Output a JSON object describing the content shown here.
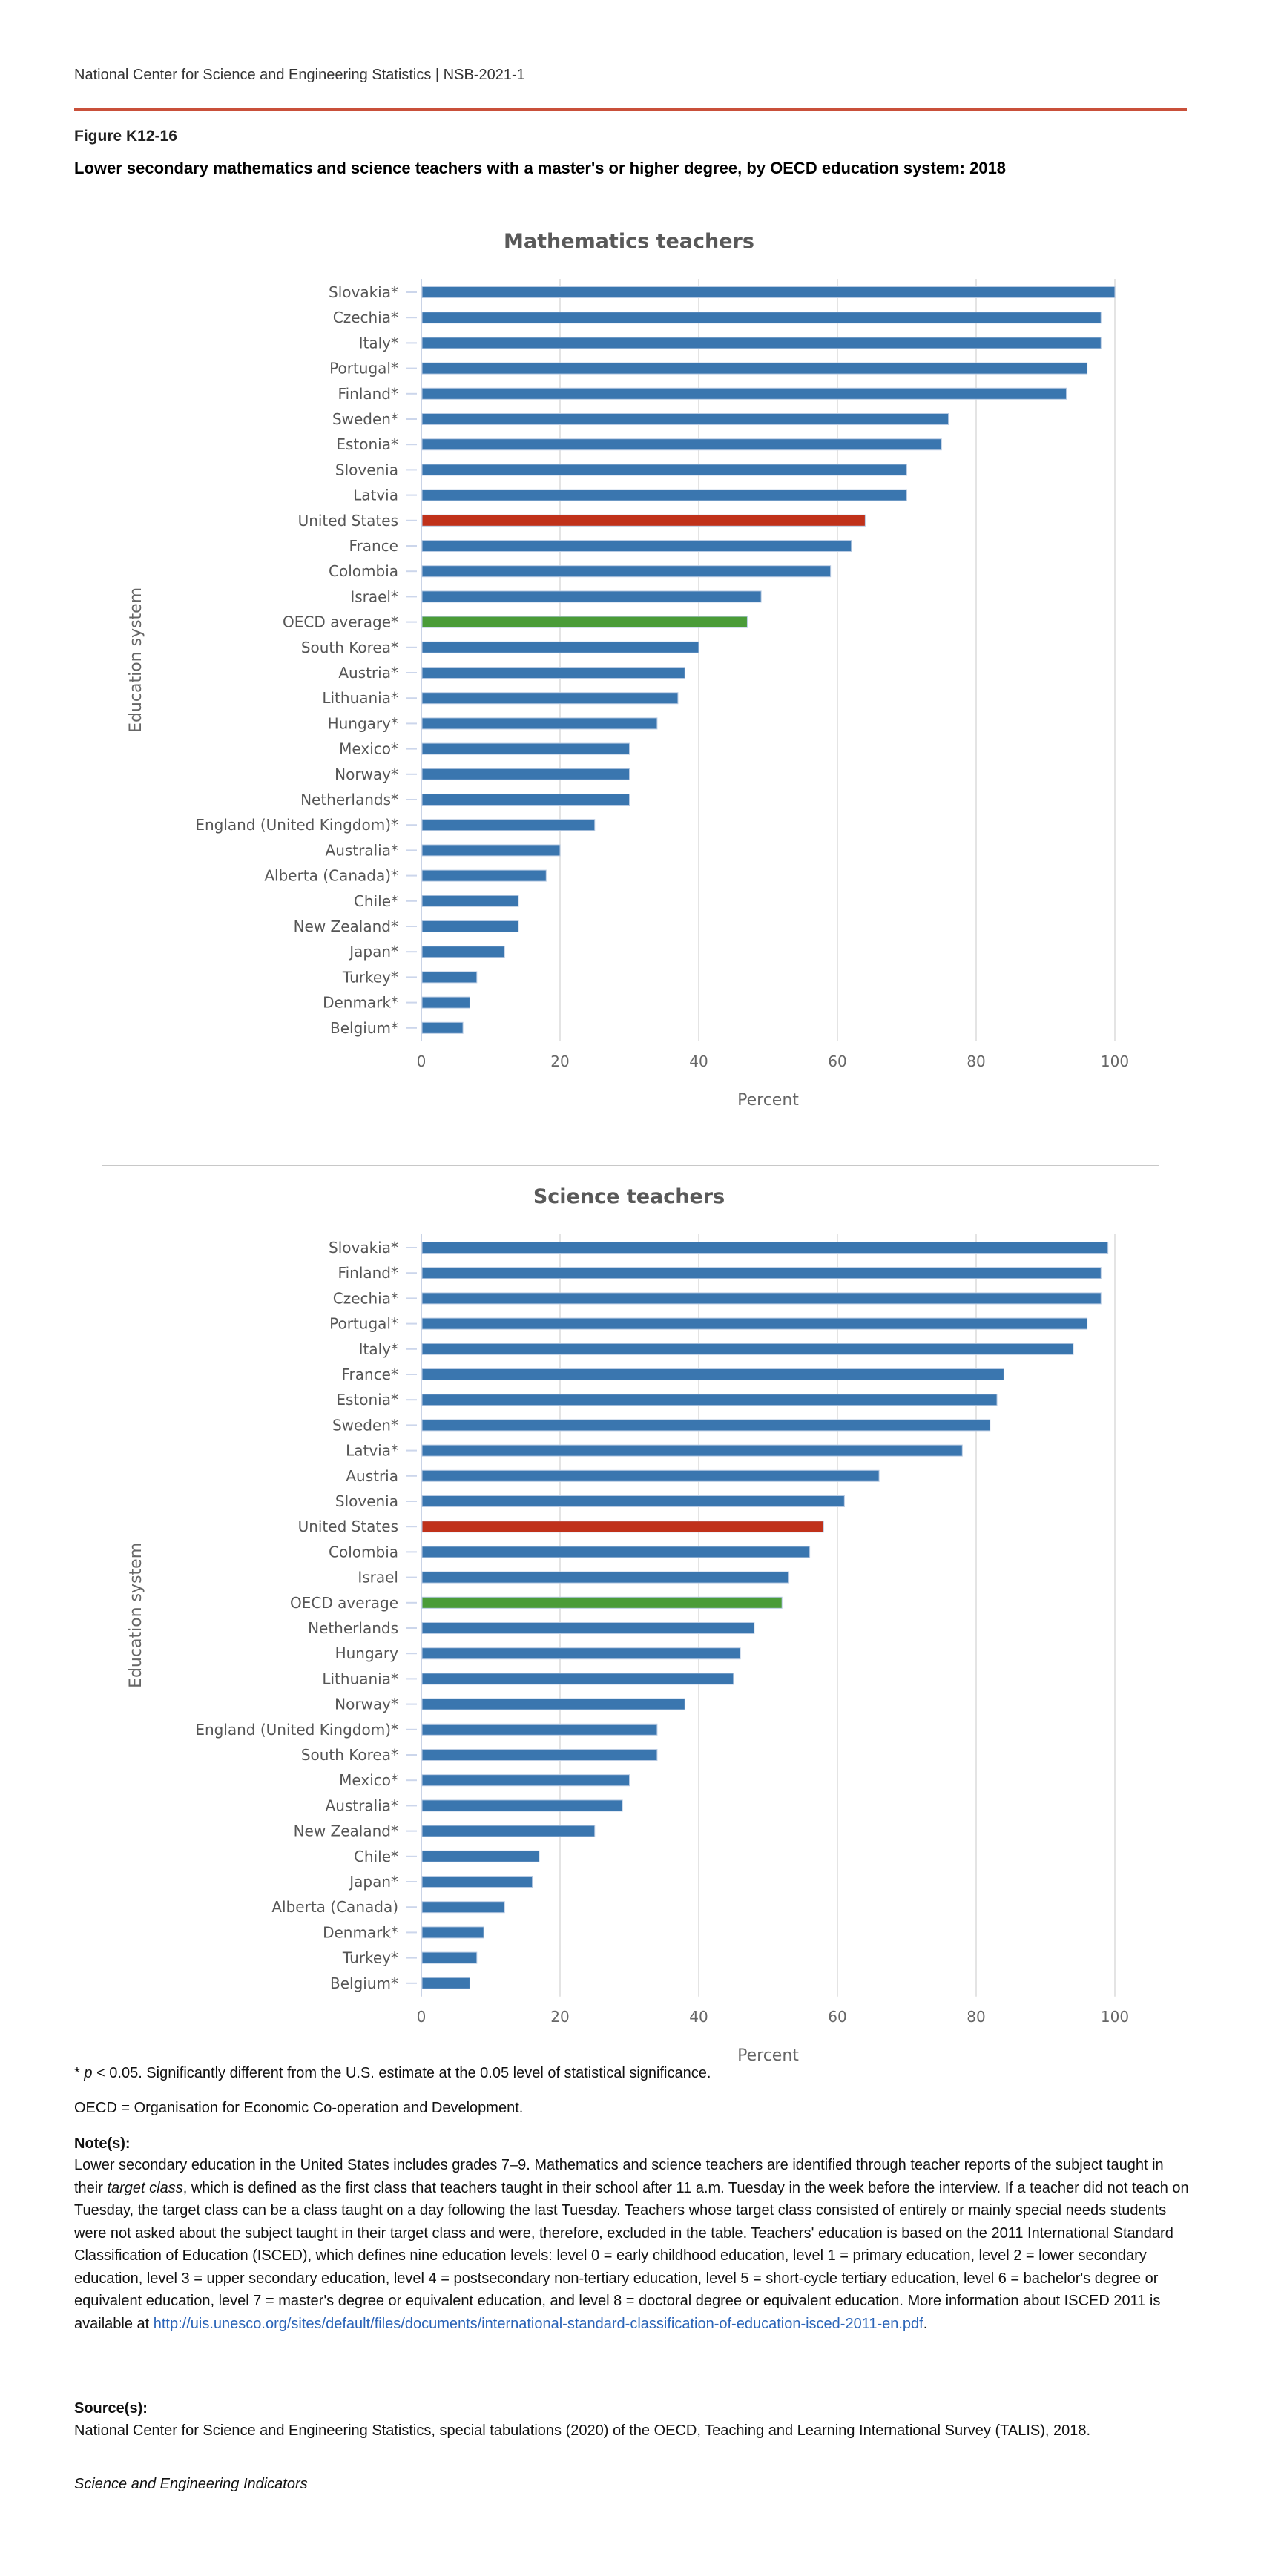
{
  "header": {
    "org": "National Center for Science and Engineering Statistics  |  NSB-2021-1"
  },
  "figure": {
    "number": "Figure K12-16",
    "title": "Lower secondary mathematics and science teachers with a master's or higher degree, by OECD education system: 2018"
  },
  "colors": {
    "default": "#3a76af",
    "united_states": "#c0311a",
    "oecd_average": "#4a9c38",
    "rule": "#c9503a"
  },
  "chart_data": [
    {
      "type": "bar",
      "orientation": "horizontal",
      "title": "Mathematics teachers",
      "xlabel": "Percent",
      "ylabel": "Education system",
      "xlim": [
        0,
        100
      ],
      "xticks": [
        "0",
        "20",
        "40",
        "60",
        "80",
        "100"
      ],
      "grid": true,
      "categories": [
        "Slovakia*",
        "Czechia*",
        "Italy*",
        "Portugal*",
        "Finland*",
        "Sweden*",
        "Estonia*",
        "Slovenia",
        "Latvia",
        "United States",
        "France",
        "Colombia",
        "Israel*",
        "OECD average*",
        "South Korea*",
        "Austria*",
        "Lithuania*",
        "Hungary*",
        "Mexico*",
        "Norway*",
        "Netherlands*",
        "England (United Kingdom)*",
        "Australia*",
        "Alberta (Canada)*",
        "Chile*",
        "New Zealand*",
        "Japan*",
        "Turkey*",
        "Denmark*",
        "Belgium*"
      ],
      "values": [
        100,
        98,
        98,
        96,
        93,
        76,
        75,
        70,
        70,
        64,
        62,
        59,
        49,
        47,
        40,
        38,
        37,
        34,
        30,
        30,
        30,
        25,
        20,
        18,
        14,
        14,
        12,
        8,
        7,
        6
      ]
    },
    {
      "type": "bar",
      "orientation": "horizontal",
      "title": "Science teachers",
      "xlabel": "Percent",
      "ylabel": "Education system",
      "xlim": [
        0,
        100
      ],
      "xticks": [
        "0",
        "20",
        "40",
        "60",
        "80",
        "100"
      ],
      "grid": true,
      "categories": [
        "Slovakia*",
        "Finland*",
        "Czechia*",
        "Portugal*",
        "Italy*",
        "France*",
        "Estonia*",
        "Sweden*",
        "Latvia*",
        "Austria",
        "Slovenia",
        "United States",
        "Colombia",
        "Israel",
        "OECD average",
        "Netherlands",
        "Hungary",
        "Lithuania*",
        "Norway*",
        "England (United Kingdom)*",
        "South Korea*",
        "Mexico*",
        "Australia*",
        "New Zealand*",
        "Chile*",
        "Japan*",
        "Alberta (Canada)",
        "Denmark*",
        "Turkey*",
        "Belgium*"
      ],
      "values": [
        99,
        98,
        98,
        96,
        94,
        84,
        83,
        82,
        78,
        66,
        61,
        58,
        56,
        53,
        52,
        48,
        46,
        45,
        38,
        34,
        34,
        30,
        29,
        25,
        17,
        16,
        12,
        9,
        8,
        7
      ]
    }
  ],
  "footnotes": {
    "significance_star": "* ",
    "significance_p": "p",
    "significance_rest": " < 0.05. Significantly different from the U.S. estimate at the 0.05 level of statistical significance.",
    "oecd": "OECD = Organisation for Economic Co-operation and Development.",
    "notes_heading": "Note(s):",
    "notes_part1": "Lower secondary education in the United States includes grades 7–9. Mathematics and science teachers are identified through teacher reports of the subject taught in their ",
    "notes_italic": "target class",
    "notes_part2": ", which is defined as the first class that teachers taught in their school after 11 a.m. Tuesday in the week before the interview. If a teacher did not teach on Tuesday, the target class can be a class taught on a day following the last Tuesday. Teachers whose target class consisted of entirely or mainly special needs students were not asked about the subject taught in their target class and were, therefore, excluded in the table. Teachers' education is based on the 2011 International Standard Classification of Education (ISCED), which defines nine education levels: level 0 = early childhood education, level 1 = primary education, level 2 = lower secondary education, level 3 = upper secondary education, level 4 = postsecondary non-tertiary education, level 5 = short-cycle tertiary education, level 6 = bachelor's degree or equivalent education, level 7 = master's degree or equivalent education, and level 8 = doctoral degree or equivalent education. More information about ISCED 2011 is available at ",
    "notes_link": "http://uis.unesco.org/sites/default/files/documents/international-standard-classification-of-education-isced-2011-en.pdf",
    "notes_end": ".",
    "sources_heading": "Source(s):",
    "sources_text": "National Center for Science and Engineering Statistics, special tabulations (2020) of the OECD, Teaching and Learning International Survey (TALIS), 2018.",
    "publication": "Science and Engineering Indicators"
  }
}
